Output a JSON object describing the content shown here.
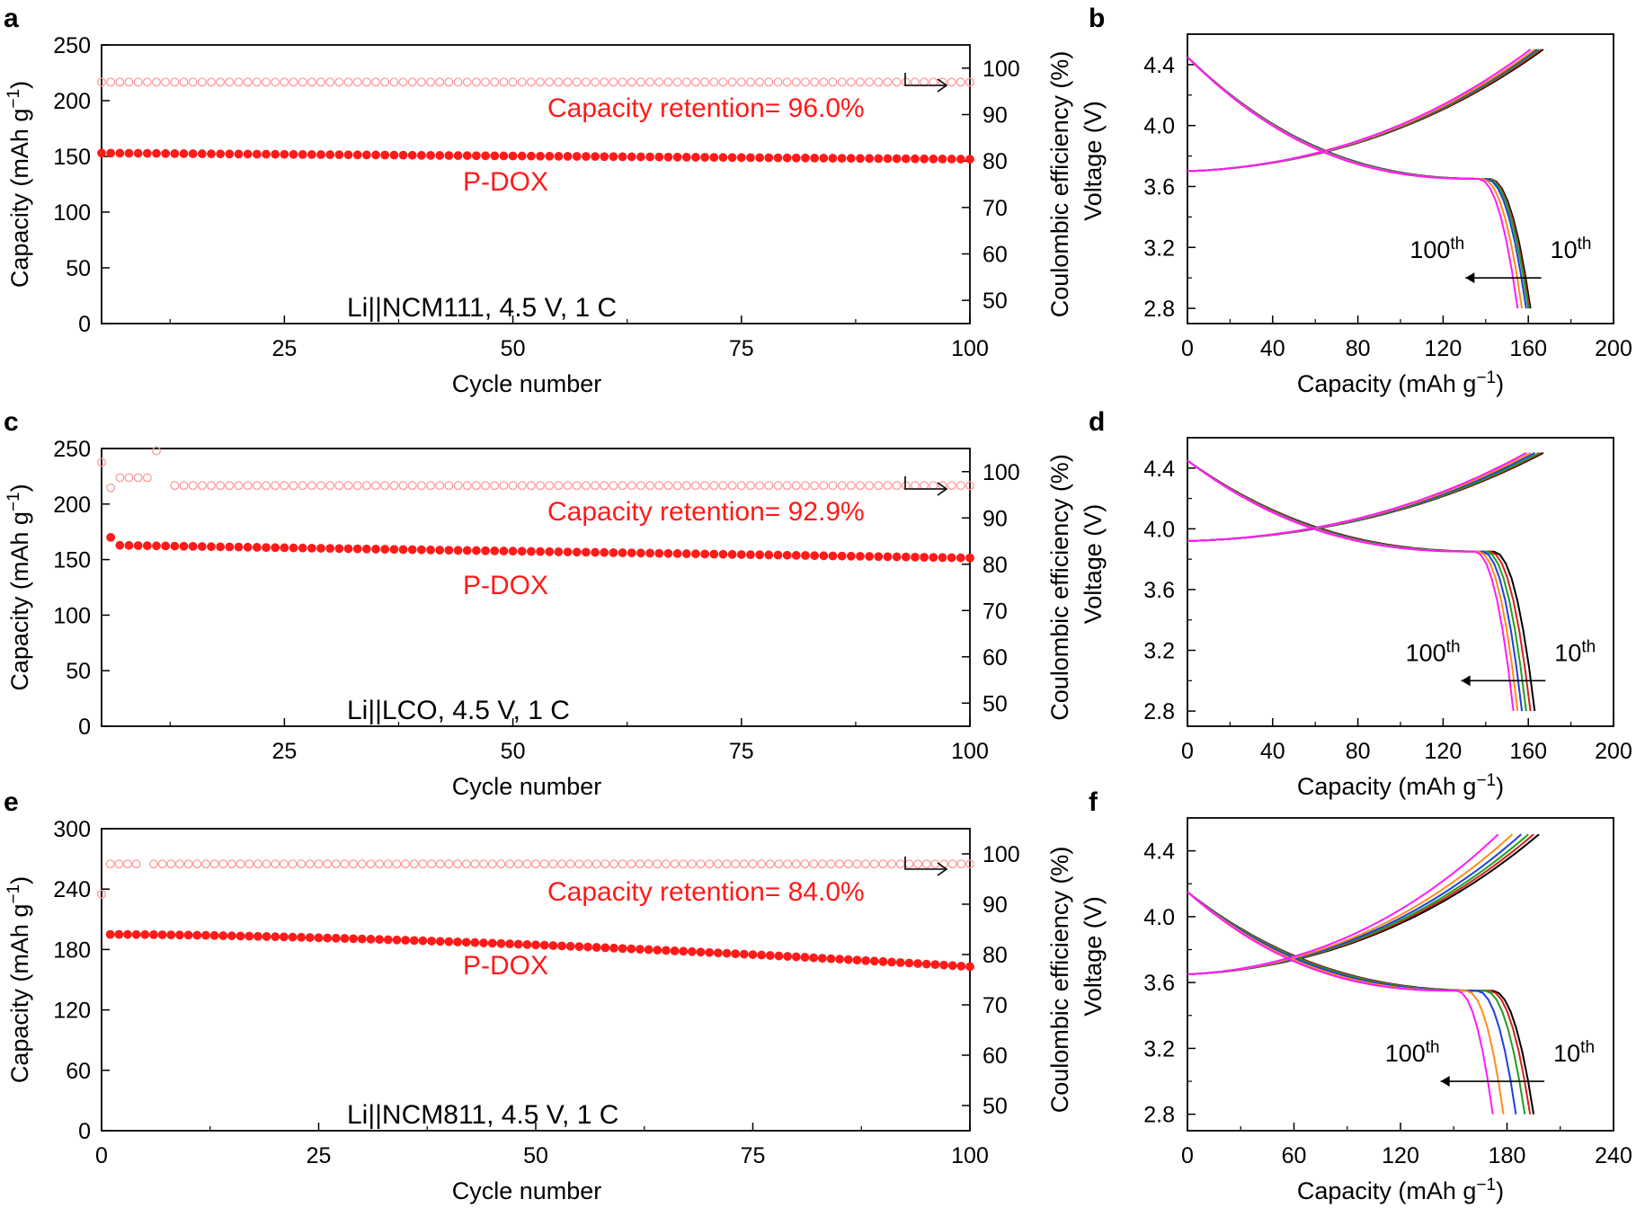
{
  "colors": {
    "red": "#ff1a1a",
    "ce_marker": "#ff9a9a",
    "curve_colors": [
      "#000000",
      "#d62020",
      "#1fa01f",
      "#1f3fe0",
      "#ff8c1a",
      "#ff1aff"
    ]
  },
  "chart_data": [
    {
      "panel": "a",
      "type": "scatter",
      "xlabel": "Cycle number",
      "ylabel": "Capacity (mAh g⁻¹)",
      "y2label": "Coulombic efficiency (%)",
      "xlim": [
        5,
        100
      ],
      "ylim": [
        0,
        250
      ],
      "y2lim": [
        45,
        105
      ],
      "xticks": [
        25,
        50,
        75,
        100
      ],
      "yticks": [
        0,
        50,
        100,
        150,
        200,
        250
      ],
      "y2ticks": [
        50,
        60,
        70,
        80,
        90,
        100
      ],
      "capacity": {
        "x_start": 5,
        "x_end": 100,
        "start": 153,
        "end": 147.5
      },
      "ce": {
        "x_start": 5,
        "x_end": 100,
        "value": 97.0
      },
      "retention_text": "Capacity retention= 96.0%",
      "series_label": "P-DOX",
      "condition": "Li||NCM111, 4.5 V, 1 C"
    },
    {
      "panel": "b",
      "type": "line",
      "xlabel": "Capacity (mAh g⁻¹)",
      "ylabel": "Voltage (V)",
      "xlim": [
        0,
        200
      ],
      "ylim": [
        2.7,
        4.6
      ],
      "xticks": [
        0,
        40,
        80,
        120,
        160,
        200
      ],
      "yticks": [
        2.8,
        3.2,
        3.6,
        4.0,
        4.4
      ],
      "first_label": "10th",
      "last_label": "100th",
      "charge_caps": [
        167,
        166,
        165,
        164,
        163,
        161
      ],
      "discharge_caps": [
        161,
        160.5,
        160,
        159,
        157,
        155
      ],
      "charge_start_v": 3.7,
      "charge_end_v": 4.5,
      "discharge_start_v": 4.45,
      "discharge_plateau_v": 3.65,
      "cutoff_v": 2.8
    },
    {
      "panel": "c",
      "type": "scatter",
      "xlabel": "Cycle number",
      "ylabel": "Capacity (mAh g⁻¹)",
      "y2label": "Coulombic efficiency (%)",
      "xlim": [
        5,
        100
      ],
      "ylim": [
        0,
        250
      ],
      "y2lim": [
        45,
        105
      ],
      "xticks": [
        25,
        50,
        75,
        100
      ],
      "yticks": [
        0,
        50,
        100,
        150,
        200,
        250
      ],
      "y2ticks": [
        50,
        60,
        70,
        80,
        90,
        100
      ],
      "capacity": {
        "x_start": 6,
        "x_end": 100,
        "start": 163,
        "end": 151.5,
        "first_value": 170
      },
      "ce": {
        "x_start": 5,
        "x_end": 100,
        "value": 97.0
      },
      "retention_text": "Capacity retention= 92.9%",
      "series_label": "P-DOX",
      "condition": "Li||LCO, 4.5 V, 1 C"
    },
    {
      "panel": "d",
      "type": "line",
      "xlabel": "Capacity (mAh g⁻¹)",
      "ylabel": "Voltage (V)",
      "xlim": [
        0,
        200
      ],
      "ylim": [
        2.7,
        4.6
      ],
      "xticks": [
        0,
        40,
        80,
        120,
        160,
        200
      ],
      "yticks": [
        2.8,
        3.2,
        3.6,
        4.0,
        4.4
      ],
      "first_label": "10th",
      "last_label": "100th",
      "charge_caps": [
        167,
        166,
        165,
        163,
        161,
        159
      ],
      "discharge_caps": [
        163,
        161,
        159,
        157,
        155,
        153
      ],
      "charge_start_v": 3.92,
      "charge_end_v": 4.5,
      "discharge_start_v": 4.45,
      "discharge_plateau_v": 3.85,
      "cutoff_v": 2.8
    },
    {
      "panel": "e",
      "type": "scatter",
      "xlabel": "Cycle number",
      "ylabel": "Capacity (mAh g⁻¹)",
      "y2label": "Coulombic efficiency (%)",
      "xlim": [
        0,
        100
      ],
      "ylim": [
        0,
        300
      ],
      "y2lim": [
        45,
        105
      ],
      "xticks": [
        0,
        25,
        50,
        75,
        100
      ],
      "yticks": [
        0,
        60,
        120,
        180,
        240,
        300
      ],
      "y2ticks": [
        50,
        60,
        70,
        80,
        90,
        100
      ],
      "capacity": {
        "x_start": 1,
        "x_end": 100,
        "start": 195,
        "end": 163
      },
      "ce": {
        "x_start": 0,
        "x_end": 100,
        "value": 98.0
      },
      "retention_text": "Capacity retention= 84.0%",
      "series_label": "P-DOX",
      "condition": "Li||NCM811, 4.5 V, 1 C"
    },
    {
      "panel": "f",
      "type": "line",
      "xlabel": "Capacity (mAh g⁻¹)",
      "ylabel": "Voltage (V)",
      "xlim": [
        0,
        240
      ],
      "ylim": [
        2.7,
        4.6
      ],
      "xticks": [
        0,
        60,
        120,
        180,
        240
      ],
      "yticks": [
        2.8,
        3.2,
        3.6,
        4.0,
        4.4
      ],
      "first_label": "10th",
      "last_label": "100th",
      "charge_caps": [
        198,
        195,
        192,
        188,
        183,
        175
      ],
      "discharge_caps": [
        195,
        193,
        190,
        185,
        178,
        172
      ],
      "charge_start_v": 3.65,
      "charge_end_v": 4.5,
      "discharge_start_v": 4.15,
      "discharge_plateau_v": 3.55,
      "cutoff_v": 2.8
    }
  ]
}
